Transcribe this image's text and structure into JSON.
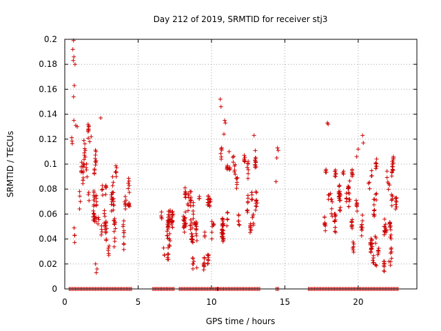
{
  "chart_data": {
    "type": "scatter",
    "title": "Day 212 of 2019, SRMTID for receiver stj3",
    "xlabel": "GPS time / hours",
    "ylabel": "SRMTID / TECUs",
    "xlim": [
      0,
      24
    ],
    "ylim": [
      0,
      0.2
    ],
    "xticks": [
      0,
      5,
      10,
      15,
      20
    ],
    "xtick_labels": [
      "0",
      "5",
      "10",
      "15",
      "20"
    ],
    "yticks": [
      0,
      0.02,
      0.04,
      0.06,
      0.08,
      0.1,
      0.12,
      0.14,
      0.16,
      0.18,
      0.2
    ],
    "ytick_labels": [
      "0",
      "0.02",
      "0.04",
      "0.06",
      "0.08",
      "0.1",
      "0.12",
      "0.14",
      "0.16",
      "0.18",
      "0.2"
    ],
    "grid": true,
    "marker": "+",
    "color": "#cc0000",
    "segments": [
      {
        "start": 0.5,
        "end": 2.5,
        "low": 0.04,
        "high": 0.13
      },
      {
        "start": 2.5,
        "end": 4.6,
        "low": 0.03,
        "high": 0.09
      },
      {
        "start": 6.2,
        "end": 7.4,
        "low": 0.03,
        "high": 0.065
      },
      {
        "start": 8.0,
        "end": 10.4,
        "low": 0.02,
        "high": 0.09
      },
      {
        "start": 10.5,
        "end": 13.1,
        "low": 0.04,
        "high": 0.11
      },
      {
        "start": 17.7,
        "end": 19.6,
        "low": 0.05,
        "high": 0.1
      },
      {
        "start": 19.6,
        "end": 22.7,
        "low": 0.02,
        "high": 0.1
      }
    ],
    "high_points": [
      {
        "x": 0.6,
        "y": 0.199
      },
      {
        "x": 0.55,
        "y": 0.192
      },
      {
        "x": 0.62,
        "y": 0.186
      },
      {
        "x": 0.58,
        "y": 0.183
      },
      {
        "x": 0.7,
        "y": 0.18
      },
      {
        "x": 0.65,
        "y": 0.163
      },
      {
        "x": 0.6,
        "y": 0.154
      },
      {
        "x": 0.62,
        "y": 0.135
      },
      {
        "x": 0.75,
        "y": 0.131
      },
      {
        "x": 0.85,
        "y": 0.13
      },
      {
        "x": 2.45,
        "y": 0.137
      },
      {
        "x": 1.6,
        "y": 0.128
      },
      {
        "x": 1.8,
        "y": 0.122
      },
      {
        "x": 1.3,
        "y": 0.119
      },
      {
        "x": 1.7,
        "y": 0.118
      },
      {
        "x": 10.6,
        "y": 0.152
      },
      {
        "x": 10.65,
        "y": 0.146
      },
      {
        "x": 10.9,
        "y": 0.135
      },
      {
        "x": 10.95,
        "y": 0.133
      },
      {
        "x": 10.85,
        "y": 0.124
      },
      {
        "x": 12.9,
        "y": 0.123
      },
      {
        "x": 11.2,
        "y": 0.11
      },
      {
        "x": 14.5,
        "y": 0.113
      },
      {
        "x": 14.55,
        "y": 0.111
      },
      {
        "x": 14.45,
        "y": 0.105
      },
      {
        "x": 14.4,
        "y": 0.086
      },
      {
        "x": 17.9,
        "y": 0.133
      },
      {
        "x": 17.95,
        "y": 0.132
      },
      {
        "x": 20.3,
        "y": 0.123
      },
      {
        "x": 20.35,
        "y": 0.117
      },
      {
        "x": 20.0,
        "y": 0.112
      },
      {
        "x": 19.9,
        "y": 0.106
      },
      {
        "x": 2.1,
        "y": 0.02
      },
      {
        "x": 2.15,
        "y": 0.013
      },
      {
        "x": 2.2,
        "y": 0.016
      },
      {
        "x": 9.0,
        "y": 0.017
      },
      {
        "x": 8.8,
        "y": 0.022
      },
      {
        "x": 22.2,
        "y": 0.019
      },
      {
        "x": 22.1,
        "y": 0.022
      },
      {
        "x": 21.0,
        "y": 0.023
      }
    ],
    "zero_ranges": [
      {
        "start": 0.3,
        "end": 4.6
      },
      {
        "start": 6.0,
        "end": 7.5
      },
      {
        "start": 7.8,
        "end": 10.5
      },
      {
        "start": 10.4,
        "end": 13.3
      },
      {
        "start": 14.4,
        "end": 14.6
      },
      {
        "start": 16.6,
        "end": 22.8
      }
    ]
  }
}
